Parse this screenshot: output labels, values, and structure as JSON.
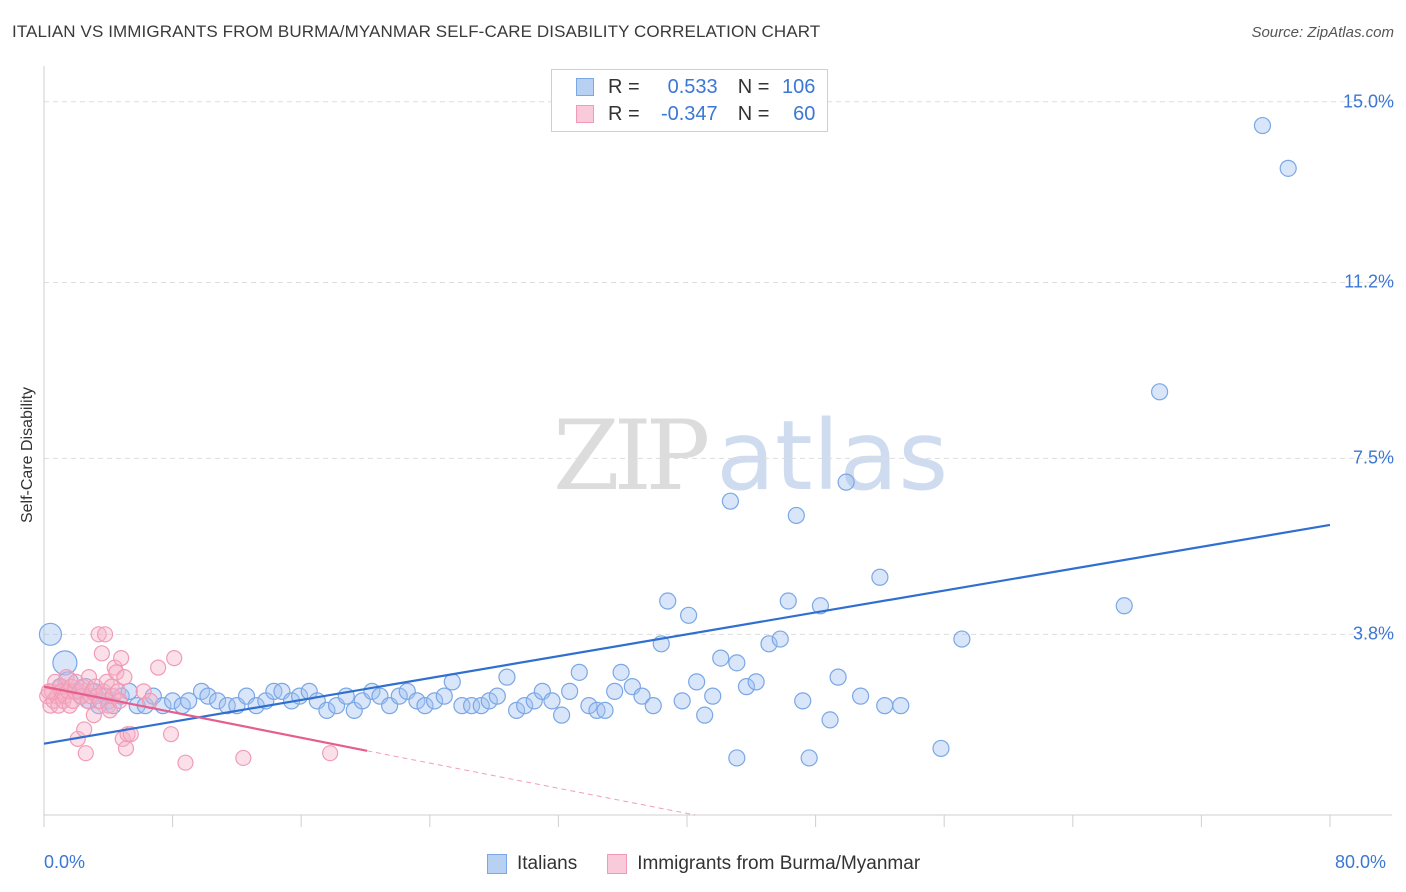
{
  "chart_data": {
    "type": "scatter",
    "title": "ITALIAN VS IMMIGRANTS FROM BURMA/MYANMAR SELF-CARE DISABILITY CORRELATION CHART",
    "source": "Source: ZipAtlas.com",
    "xlabel": "",
    "ylabel": "Self-Care Disability",
    "xlim": [
      0,
      80
    ],
    "ylim": [
      0,
      15.5
    ],
    "x_tick_labels": [
      "0.0%",
      "80.0%"
    ],
    "y_ticks": [
      {
        "value": 3.8,
        "label": "3.8%"
      },
      {
        "value": 7.5,
        "label": "7.5%"
      },
      {
        "value": 11.2,
        "label": "11.2%"
      },
      {
        "value": 15.0,
        "label": "15.0%"
      }
    ],
    "grid": true,
    "watermark": {
      "zip": "ZIP",
      "atlas": "atlas"
    },
    "legend": [
      {
        "name": "Italians",
        "r_label": "R =",
        "r": "0.533",
        "n_label": "N =",
        "n": "106"
      },
      {
        "name": "Immigrants from Burma/Myanmar",
        "r_label": "R =",
        "r": "-0.347",
        "n_label": "N =",
        "n": "60"
      }
    ],
    "series": [
      {
        "name": "Italians",
        "color": "#7aa7e6",
        "line_color": "#2f6fd0",
        "trend": {
          "x0": 0,
          "y0": 1.5,
          "x1": 80,
          "y1": 6.1
        },
        "points": [
          [
            0.4,
            3.8
          ],
          [
            1.3,
            3.2
          ],
          [
            1.5,
            2.8
          ],
          [
            2.0,
            2.6
          ],
          [
            2.3,
            2.5
          ],
          [
            2.8,
            2.4
          ],
          [
            3.1,
            2.6
          ],
          [
            3.4,
            2.3
          ],
          [
            3.8,
            2.5
          ],
          [
            4.0,
            2.4
          ],
          [
            4.3,
            2.3
          ],
          [
            4.8,
            2.5
          ],
          [
            5.3,
            2.6
          ],
          [
            5.8,
            2.3
          ],
          [
            6.3,
            2.3
          ],
          [
            6.8,
            2.5
          ],
          [
            7.4,
            2.3
          ],
          [
            8.0,
            2.4
          ],
          [
            8.6,
            2.3
          ],
          [
            9.0,
            2.4
          ],
          [
            9.8,
            2.6
          ],
          [
            10.2,
            2.5
          ],
          [
            10.8,
            2.4
          ],
          [
            11.4,
            2.3
          ],
          [
            12.0,
            2.3
          ],
          [
            12.6,
            2.5
          ],
          [
            13.2,
            2.3
          ],
          [
            13.8,
            2.4
          ],
          [
            14.3,
            2.6
          ],
          [
            14.8,
            2.6
          ],
          [
            15.4,
            2.4
          ],
          [
            15.9,
            2.5
          ],
          [
            16.5,
            2.6
          ],
          [
            17.0,
            2.4
          ],
          [
            17.6,
            2.2
          ],
          [
            18.2,
            2.3
          ],
          [
            18.8,
            2.5
          ],
          [
            19.3,
            2.2
          ],
          [
            19.8,
            2.4
          ],
          [
            20.4,
            2.6
          ],
          [
            20.9,
            2.5
          ],
          [
            21.5,
            2.3
          ],
          [
            22.1,
            2.5
          ],
          [
            22.6,
            2.6
          ],
          [
            23.2,
            2.4
          ],
          [
            23.7,
            2.3
          ],
          [
            24.3,
            2.4
          ],
          [
            24.9,
            2.5
          ],
          [
            25.4,
            2.8
          ],
          [
            26.0,
            2.3
          ],
          [
            26.6,
            2.3
          ],
          [
            27.2,
            2.3
          ],
          [
            27.7,
            2.4
          ],
          [
            28.2,
            2.5
          ],
          [
            28.8,
            2.9
          ],
          [
            29.4,
            2.2
          ],
          [
            29.9,
            2.3
          ],
          [
            30.5,
            2.4
          ],
          [
            31.0,
            2.6
          ],
          [
            31.6,
            2.4
          ],
          [
            32.2,
            2.1
          ],
          [
            32.7,
            2.6
          ],
          [
            33.3,
            3.0
          ],
          [
            33.9,
            2.3
          ],
          [
            34.4,
            2.2
          ],
          [
            34.9,
            2.2
          ],
          [
            35.5,
            2.6
          ],
          [
            35.9,
            3.0
          ],
          [
            36.6,
            2.7
          ],
          [
            37.2,
            2.5
          ],
          [
            37.9,
            2.3
          ],
          [
            38.4,
            3.6
          ],
          [
            38.8,
            4.5
          ],
          [
            39.7,
            2.4
          ],
          [
            40.1,
            4.2
          ],
          [
            40.6,
            2.8
          ],
          [
            41.1,
            2.1
          ],
          [
            41.6,
            2.5
          ],
          [
            42.1,
            3.3
          ],
          [
            43.1,
            3.2
          ],
          [
            43.1,
            1.2
          ],
          [
            42.7,
            6.6
          ],
          [
            43.7,
            2.7
          ],
          [
            44.3,
            2.8
          ],
          [
            45.1,
            3.6
          ],
          [
            45.8,
            3.7
          ],
          [
            46.3,
            4.5
          ],
          [
            46.8,
            6.3
          ],
          [
            47.2,
            2.4
          ],
          [
            47.6,
            1.2
          ],
          [
            48.3,
            4.4
          ],
          [
            48.9,
            2.0
          ],
          [
            49.4,
            2.9
          ],
          [
            49.9,
            7.0
          ],
          [
            50.8,
            2.5
          ],
          [
            52.0,
            5.0
          ],
          [
            52.3,
            2.3
          ],
          [
            53.3,
            2.3
          ],
          [
            55.8,
            1.4
          ],
          [
            57.1,
            3.7
          ],
          [
            67.2,
            4.4
          ],
          [
            69.4,
            8.9
          ],
          [
            75.8,
            14.5
          ],
          [
            77.4,
            13.6
          ],
          [
            1.0,
            2.7
          ],
          [
            2.6,
            2.7
          ]
        ]
      },
      {
        "name": "Immigrants from Burma/Myanmar",
        "color": "#f29bb6",
        "line_color": "#e65f8c",
        "trend": {
          "x0": 0,
          "y0": 2.7,
          "x1": 20.1,
          "y1": 1.35
        },
        "trend_dashed_to": {
          "x": 40.5,
          "y": 0.0
        },
        "points": [
          [
            0.2,
            2.5
          ],
          [
            0.4,
            2.3
          ],
          [
            0.5,
            2.6
          ],
          [
            0.6,
            2.4
          ],
          [
            0.7,
            2.8
          ],
          [
            0.8,
            2.5
          ],
          [
            0.9,
            2.3
          ],
          [
            1.0,
            2.7
          ],
          [
            1.1,
            2.6
          ],
          [
            1.2,
            2.4
          ],
          [
            1.3,
            2.5
          ],
          [
            1.4,
            2.9
          ],
          [
            1.5,
            2.6
          ],
          [
            1.6,
            2.3
          ],
          [
            1.7,
            2.7
          ],
          [
            1.8,
            2.4
          ],
          [
            1.9,
            2.6
          ],
          [
            2.0,
            2.8
          ],
          [
            2.1,
            1.6
          ],
          [
            2.2,
            2.6
          ],
          [
            2.3,
            2.5
          ],
          [
            2.4,
            2.7
          ],
          [
            2.5,
            1.8
          ],
          [
            2.6,
            1.3
          ],
          [
            2.7,
            2.4
          ],
          [
            2.8,
            2.9
          ],
          [
            2.9,
            2.5
          ],
          [
            3.0,
            2.6
          ],
          [
            3.1,
            2.1
          ],
          [
            3.2,
            2.7
          ],
          [
            3.3,
            2.5
          ],
          [
            3.4,
            3.8
          ],
          [
            3.5,
            2.4
          ],
          [
            3.6,
            3.4
          ],
          [
            3.7,
            2.6
          ],
          [
            3.8,
            3.8
          ],
          [
            3.9,
            2.8
          ],
          [
            4.0,
            2.3
          ],
          [
            4.1,
            2.2
          ],
          [
            4.2,
            2.7
          ],
          [
            4.3,
            2.5
          ],
          [
            4.4,
            3.1
          ],
          [
            4.5,
            3.0
          ],
          [
            4.6,
            2.6
          ],
          [
            4.7,
            2.4
          ],
          [
            4.8,
            3.3
          ],
          [
            4.9,
            1.6
          ],
          [
            5.0,
            2.9
          ],
          [
            5.1,
            1.4
          ],
          [
            5.2,
            1.7
          ],
          [
            5.4,
            1.7
          ],
          [
            6.2,
            2.6
          ],
          [
            6.6,
            2.4
          ],
          [
            7.1,
            3.1
          ],
          [
            7.9,
            1.7
          ],
          [
            8.1,
            3.3
          ],
          [
            8.8,
            1.1
          ],
          [
            12.4,
            1.2
          ],
          [
            17.8,
            1.3
          ],
          [
            0.3,
            2.6
          ]
        ]
      }
    ]
  }
}
